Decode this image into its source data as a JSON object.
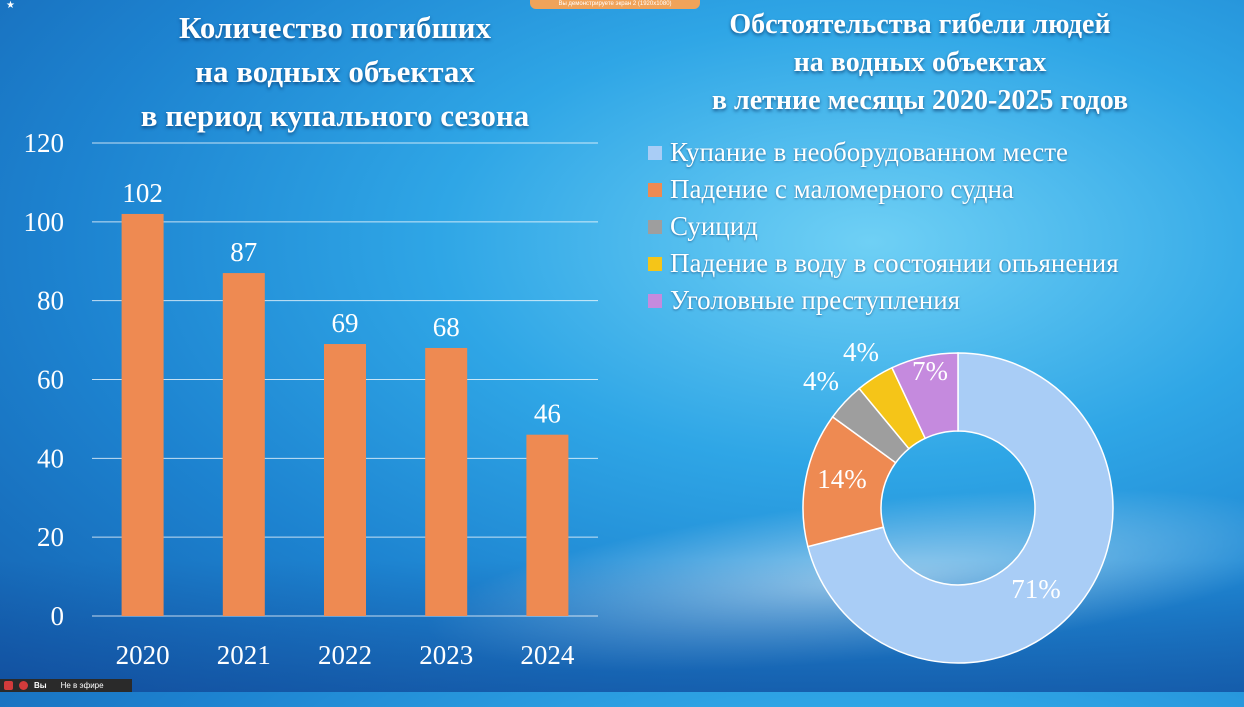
{
  "banner": {
    "text": "Вы демонстрируете экран 2 (1920x1080)"
  },
  "statusbar": {
    "user": "Вы",
    "status": "Не в эфире"
  },
  "chart_data": [
    {
      "type": "bar",
      "title_lines": [
        "Количество погибших",
        "на водных объектах",
        "в период купального сезона"
      ],
      "categories": [
        "2020",
        "2021",
        "2022",
        "2023",
        "2024"
      ],
      "values": [
        102,
        87,
        69,
        68,
        46
      ],
      "data_labels": [
        "102",
        "87",
        "69",
        "68",
        "46"
      ],
      "yticks": [
        "0",
        "20",
        "40",
        "60",
        "80",
        "100",
        "120"
      ],
      "ylim": [
        0,
        120
      ],
      "grid": true,
      "bar_color": "#ee8a52"
    },
    {
      "type": "pie",
      "donut": true,
      "title_lines": [
        "Обстоятельства гибели людей",
        "на водных объектах",
        "в летние месяцы 2020-2025 годов"
      ],
      "legend_position": "top",
      "slices": [
        {
          "label": "Купание в необорудованном месте",
          "value": 71,
          "value_label": "71%",
          "color": "#a9cdf6"
        },
        {
          "label": "Падение с маломерного судна",
          "value": 14,
          "value_label": "14%",
          "color": "#ee8a52"
        },
        {
          "label": "Суицид",
          "value": 4,
          "value_label": "4%",
          "color": "#9e9e9e"
        },
        {
          "label": "Падение в воду в состоянии опьянения",
          "value": 4,
          "value_label": "4%",
          "color": "#f5c518"
        },
        {
          "label": "Уголовные преступления",
          "value": 7,
          "value_label": "7%",
          "color": "#c58ade"
        }
      ]
    }
  ]
}
